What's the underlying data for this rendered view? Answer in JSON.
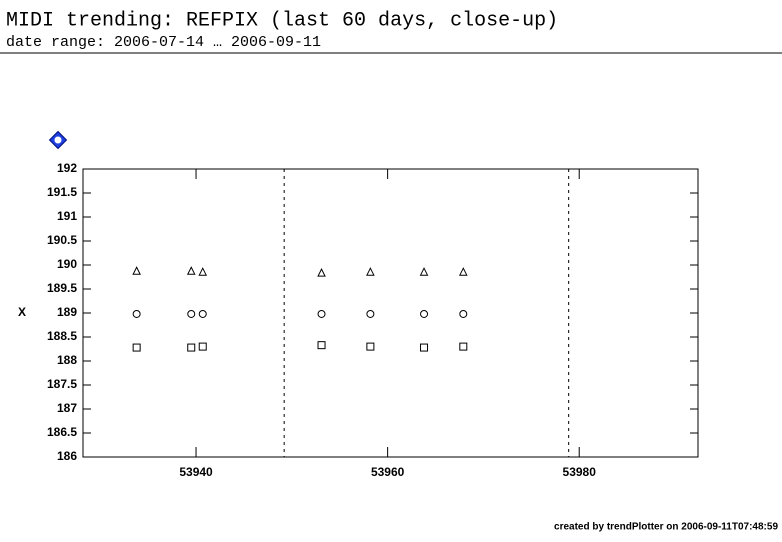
{
  "chart_data": {
    "type": "scatter",
    "title": "MIDI trending: REFPIX (last 60 days, close-up)",
    "subtitle": "date range: 2006-07-14 … 2006-09-11",
    "ylabel": "X",
    "footer": "created by trendPlotter on 2006-09-11T07:48:59",
    "x": [
      53933.8,
      53939.5,
      53940.7,
      53953.1,
      53958.2,
      53963.8,
      53967.9
    ],
    "series": [
      {
        "marker": "triangle",
        "color": "#000000",
        "values": [
          189.87,
          189.87,
          189.85,
          189.83,
          189.85,
          189.85,
          189.85
        ]
      },
      {
        "marker": "circle",
        "color": "#000000",
        "values": [
          188.98,
          188.98,
          188.98,
          188.98,
          188.98,
          188.98,
          188.98
        ]
      },
      {
        "marker": "square",
        "color": "#000000",
        "values": [
          188.28,
          188.28,
          188.3,
          188.33,
          188.3,
          188.28,
          188.3
        ]
      }
    ],
    "vlines": [
      53949.2,
      53978.9
    ],
    "xlim": [
      53928.2,
      53992.4
    ],
    "ylim": [
      186,
      192
    ],
    "xticks": [
      53940,
      53960,
      53980
    ],
    "yticks": [
      186,
      186.5,
      187,
      187.5,
      188,
      188.5,
      189,
      189.5,
      190,
      190.5,
      191,
      191.5,
      192
    ]
  }
}
